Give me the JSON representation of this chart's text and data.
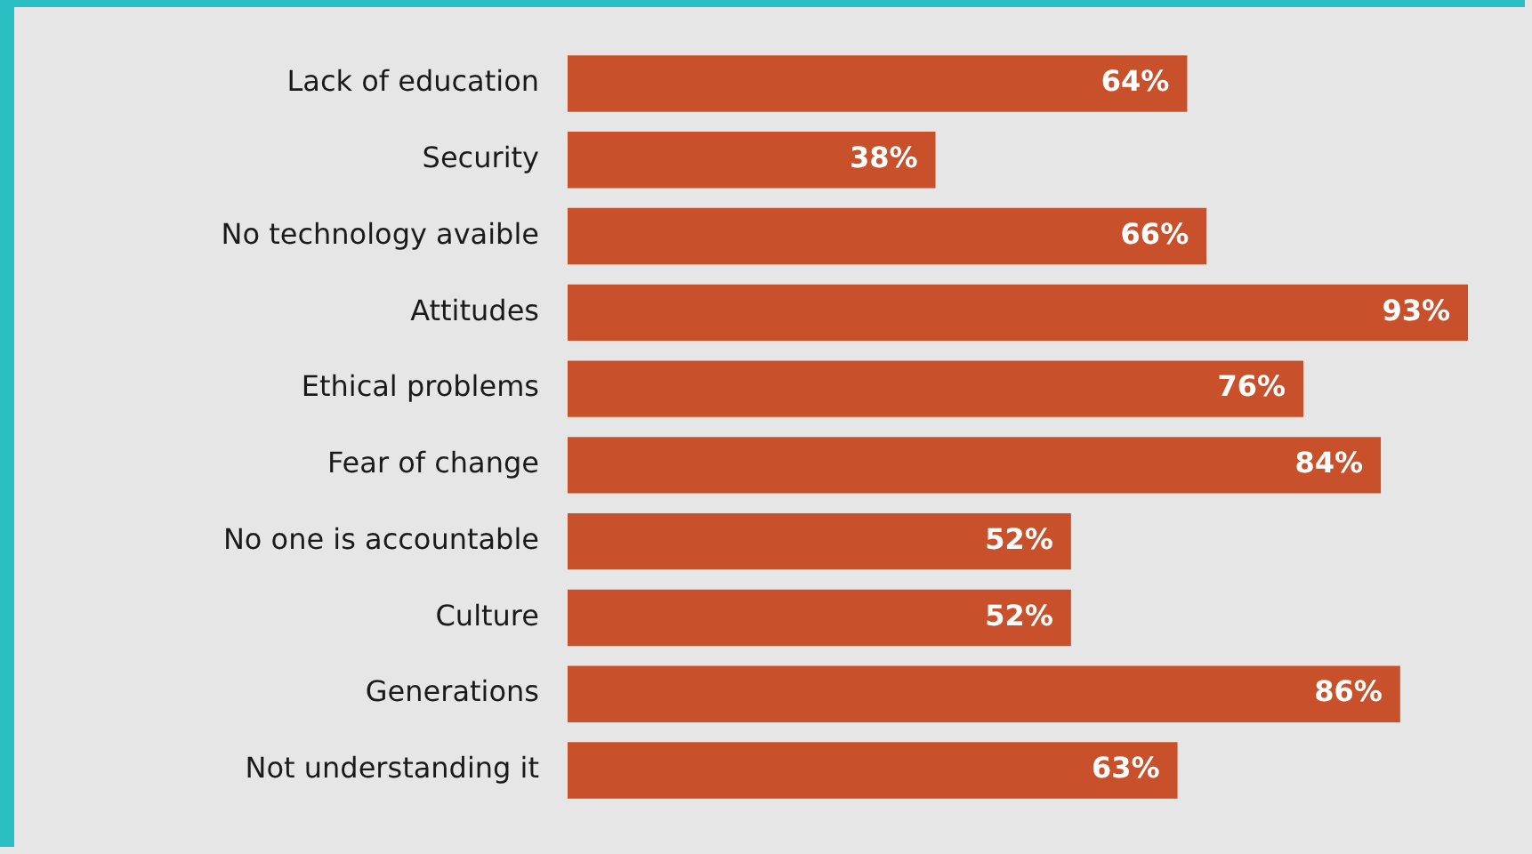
{
  "chart_data": {
    "type": "bar",
    "orientation": "horizontal",
    "categories": [
      "Lack of education",
      "Security",
      "No technology avaible",
      "Attitudes",
      "Ethical problems",
      "Fear of change",
      "No one is accountable",
      "Culture",
      "Generations",
      "Not understanding it"
    ],
    "values": [
      64,
      38,
      66,
      93,
      76,
      84,
      52,
      52,
      86,
      63
    ],
    "value_labels": [
      "64%",
      "38%",
      "66%",
      "93%",
      "76%",
      "84%",
      "52%",
      "52%",
      "86%",
      "63%"
    ],
    "color": "#c8502a",
    "tick_labels": "y",
    "grid": false,
    "legend": false
  }
}
